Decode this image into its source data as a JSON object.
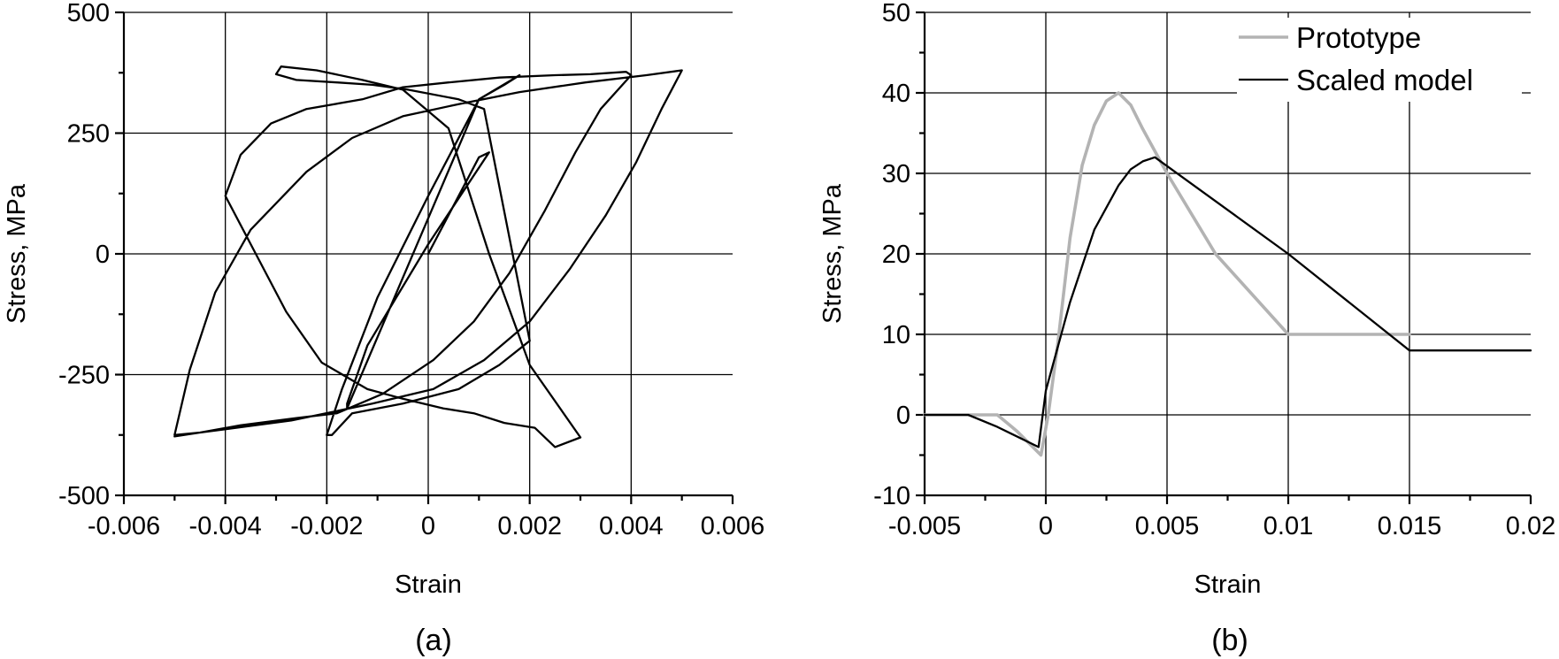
{
  "chart_data": [
    {
      "type": "line",
      "panel_label": "(a)",
      "xlabel": "Strain",
      "ylabel": "Stress, MPa",
      "xlim": [
        -0.006,
        0.006
      ],
      "ylim": [
        -500,
        500
      ],
      "xticks": [
        -0.006,
        -0.004,
        -0.002,
        0,
        0.002,
        0.004,
        0.006
      ],
      "xtick_labels": [
        "-0.006",
        "-0.004",
        "-0.002",
        "0",
        "0.002",
        "0.004",
        "0.006"
      ],
      "yticks": [
        -500,
        -250,
        0,
        250,
        500
      ],
      "ytick_labels": [
        "-500",
        "-250",
        "0",
        "250",
        "500"
      ],
      "grid": true,
      "series": [
        {
          "color": "#000000",
          "x": [
            0,
            0.001,
            0.0012,
            0,
            -0.0012,
            -0.0016,
            -0.0016,
            0.001,
            0.0014,
            0.0018,
            0.0015,
            0.001,
            0,
            -0.001,
            -0.0017,
            -0.002,
            -0.0019,
            -0.0015,
            -0.0005,
            0.0006,
            0.0014,
            0.002,
            0.0011,
            0.0006,
            -0.0004,
            -0.0011,
            -0.0018,
            -0.0026,
            -0.003,
            -0.0029,
            -0.0022,
            -0.0013,
            -0.0005,
            0.0004,
            0.0012,
            0.002,
            0.003,
            0.0025,
            0.0021,
            0.0015,
            0.0009,
            0.0003,
            -0.0005,
            -0.0012,
            -0.0021,
            -0.0028,
            -0.0034,
            -0.004,
            -0.0037,
            -0.0031,
            -0.0024,
            -0.0013,
            -0.0005,
            0.0004,
            0.0014,
            0.0025,
            0.0032,
            0.0039,
            0.004,
            0.0034,
            0.0029,
            0.0023,
            0.0016,
            0.0009,
            0.0001,
            -0.0009,
            -0.0018,
            -0.0026,
            -0.0037,
            -0.0045,
            -0.005,
            -0.0047,
            -0.0042,
            -0.0035,
            -0.0024,
            -0.0015,
            -0.0005,
            0.0006,
            0.0018,
            0.0031,
            0.0043,
            0.005,
            0.0046,
            0.0041,
            0.0035,
            0.0028,
            0.002,
            0.0011,
            0.0001,
            -0.0011,
            -0.0027,
            -0.0045,
            -0.005
          ],
          "y": [
            0,
            200,
            210,
            20,
            -190,
            -310,
            -320,
            320,
            345,
            370,
            350,
            320,
            120,
            -90,
            -280,
            -375,
            -375,
            -330,
            -310,
            -280,
            -230,
            -180,
            300,
            320,
            340,
            350,
            355,
            360,
            372,
            388,
            380,
            360,
            340,
            260,
            0,
            -230,
            -380,
            -400,
            -360,
            -350,
            -330,
            -320,
            -300,
            -280,
            -225,
            -120,
            0,
            120,
            205,
            270,
            300,
            320,
            345,
            355,
            365,
            370,
            372,
            377,
            370,
            300,
            210,
            90,
            -40,
            -140,
            -220,
            -290,
            -330,
            -340,
            -355,
            -370,
            -375,
            -240,
            -80,
            50,
            170,
            240,
            285,
            310,
            335,
            355,
            370,
            380,
            300,
            190,
            80,
            -30,
            -140,
            -220,
            -280,
            -310,
            -345,
            -370,
            -378
          ]
        }
      ]
    },
    {
      "type": "line",
      "panel_label": "(b)",
      "xlabel": "Strain",
      "ylabel": "Stress, MPa",
      "xlim": [
        -0.005,
        0.02
      ],
      "ylim": [
        -10,
        50
      ],
      "xticks": [
        -0.005,
        0,
        0.005,
        0.01,
        0.015,
        0.02
      ],
      "xtick_labels": [
        "-0.005",
        "0",
        "0.005",
        "0.01",
        "0.015",
        "0.02"
      ],
      "yticks": [
        -10,
        0,
        10,
        20,
        30,
        40,
        50
      ],
      "ytick_labels": [
        "-10",
        "0",
        "10",
        "20",
        "30",
        "40",
        "50"
      ],
      "grid": true,
      "legend_position": "top-right",
      "series": [
        {
          "name": "Prototype",
          "color": "#b3b3b3",
          "x": [
            -0.005,
            -0.002,
            -0.0012,
            -0.0002,
            0.0001,
            0.0005,
            0.001,
            0.0015,
            0.002,
            0.0025,
            0.003,
            0.0035,
            0.004,
            0.005,
            0.007,
            0.01,
            0.015
          ],
          "y": [
            0,
            0,
            -2,
            -5,
            0,
            9,
            22,
            31,
            36,
            39,
            40,
            38.5,
            35.5,
            30,
            20,
            10,
            10
          ]
        },
        {
          "name": "Scaled model",
          "color": "#000000",
          "x": [
            -0.005,
            -0.0032,
            -0.002,
            -0.0003,
            0,
            0.001,
            0.002,
            0.003,
            0.0035,
            0.004,
            0.0045,
            0.01,
            0.015,
            0.02
          ],
          "y": [
            0,
            0,
            -1.5,
            -4,
            3,
            14,
            23,
            28.5,
            30.5,
            31.5,
            32,
            20,
            8,
            8
          ]
        }
      ]
    }
  ]
}
